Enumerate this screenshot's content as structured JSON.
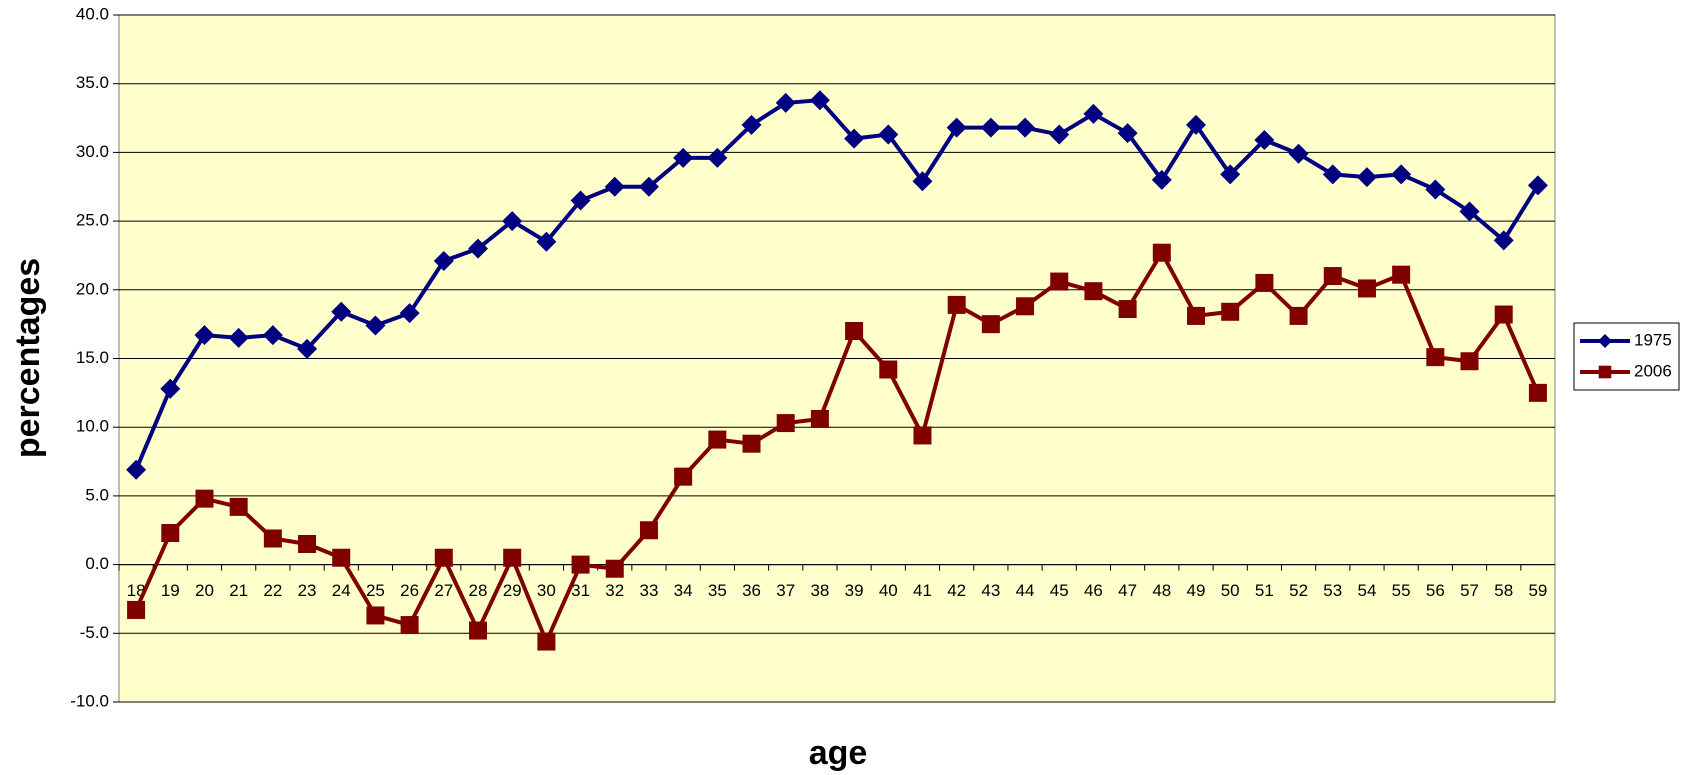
{
  "chart_data": {
    "type": "line",
    "xlabel": "age",
    "ylabel": "percentages",
    "categories": [
      "18",
      "19",
      "20",
      "21",
      "22",
      "23",
      "24",
      "25",
      "26",
      "27",
      "28",
      "29",
      "30",
      "31",
      "32",
      "33",
      "34",
      "35",
      "36",
      "37",
      "38",
      "39",
      "40",
      "41",
      "42",
      "43",
      "44",
      "45",
      "46",
      "47",
      "48",
      "49",
      "50",
      "51",
      "52",
      "53",
      "54",
      "55",
      "56",
      "57",
      "58",
      "59"
    ],
    "series": [
      {
        "name": "1975",
        "color": "#000080",
        "marker": "diamond",
        "values": [
          6.9,
          12.8,
          16.7,
          16.5,
          16.7,
          15.7,
          18.4,
          17.4,
          18.3,
          22.1,
          23.0,
          25.0,
          23.5,
          26.5,
          27.5,
          27.5,
          29.6,
          29.6,
          32.0,
          33.6,
          33.8,
          31.0,
          31.3,
          27.9,
          31.8,
          31.8,
          31.8,
          31.3,
          32.8,
          31.4,
          28.0,
          32.0,
          28.4,
          30.9,
          29.9,
          28.4,
          28.2,
          28.4,
          27.3,
          25.7,
          23.6,
          27.6
        ]
      },
      {
        "name": "2006",
        "color": "#800000",
        "marker": "square",
        "values": [
          -3.3,
          2.3,
          4.8,
          4.2,
          1.9,
          1.5,
          0.5,
          -3.7,
          -4.4,
          0.5,
          -4.8,
          0.5,
          -5.6,
          0.0,
          -0.3,
          2.5,
          6.4,
          9.1,
          8.8,
          10.3,
          10.6,
          17.0,
          14.2,
          9.4,
          18.9,
          17.5,
          18.8,
          20.6,
          19.9,
          18.6,
          22.7,
          18.1,
          18.4,
          20.5,
          18.1,
          21.0,
          20.1,
          21.1,
          15.1,
          14.8,
          18.2,
          12.5
        ]
      }
    ],
    "ylim": [
      -10,
      40
    ],
    "yticks": [
      {
        "value": -10,
        "label": "-10.0"
      },
      {
        "value": -5,
        "label": "-5.0"
      },
      {
        "value": 0,
        "label": "0.0"
      },
      {
        "value": 5,
        "label": "5.0"
      },
      {
        "value": 10,
        "label": "10.0"
      },
      {
        "value": 15,
        "label": "15.0"
      },
      {
        "value": 20,
        "label": "20.0"
      },
      {
        "value": 25,
        "label": "25.0"
      },
      {
        "value": 30,
        "label": "30.0"
      },
      {
        "value": 35,
        "label": "35.0"
      },
      {
        "value": 40,
        "label": "40.0"
      }
    ],
    "grid": true,
    "legend": "right",
    "background": "#ffffcc"
  }
}
